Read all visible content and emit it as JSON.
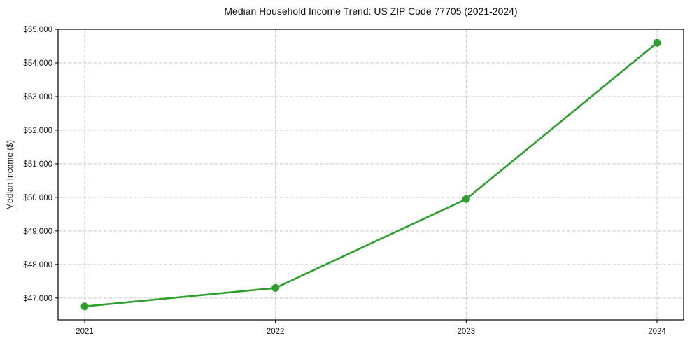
{
  "chart_data": {
    "type": "line",
    "title": "Median Household Income Trend: US ZIP Code 77705 (2021-2024)",
    "xlabel": "",
    "ylabel": "Median Income ($)",
    "x": [
      2021,
      2022,
      2023,
      2024
    ],
    "xtick_labels": [
      "2021",
      "2022",
      "2023",
      "2024"
    ],
    "series": [
      {
        "name": "Median Household Income",
        "values": [
          46750,
          47300,
          49950,
          54600
        ]
      }
    ],
    "ylim": [
      46350,
      55000
    ],
    "yticks": [
      47000,
      48000,
      49000,
      50000,
      51000,
      52000,
      53000,
      54000,
      55000
    ],
    "ytick_labels": [
      "$47,000",
      "$48,000",
      "$49,000",
      "$50,000",
      "$51,000",
      "$52,000",
      "$53,000",
      "$54,000",
      "$55,000"
    ],
    "grid": true,
    "grid_style": "dashed",
    "legend": "none",
    "line_color": "#2ca02c",
    "marker": "circle",
    "marker_color": "#2ca02c",
    "grid_color": "#c9c9c9",
    "axis_color": "#000000",
    "text_color": "#1a1a1a",
    "background": "#ffffff"
  }
}
